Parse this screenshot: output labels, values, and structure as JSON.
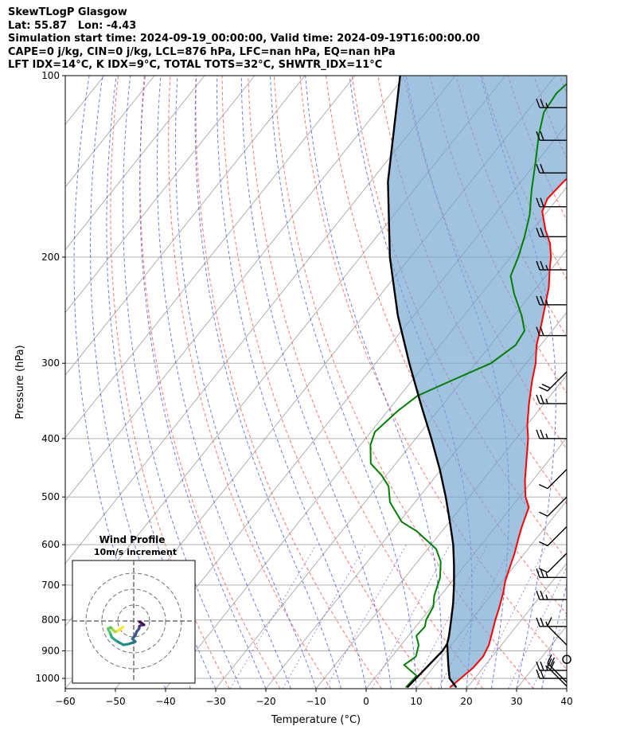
{
  "header": {
    "lines": [
      "SkewTLogP Glasgow",
      "Lat: 55.87   Lon: -4.43",
      "Simulation start time: 2024-09-19_00:00:00, Valid time: 2024-09-19T16:00:00.00",
      "CAPE=0 j/kg, CIN=0 j/kg, LCL=876 hPa, LFC=nan hPa, EQ=nan hPa",
      "LFT IDX=14°C, K IDX=9°C, TOTAL TOTS=32°C, SHWTR_IDX=11°C"
    ]
  },
  "chart_data": [
    {
      "type": "line",
      "subtype": "skew-t log-p",
      "xlabel": "Temperature (°C)",
      "ylabel": "Pressure (hPa)",
      "xlim": [
        -60,
        40
      ],
      "ylim": [
        1040,
        100
      ],
      "y_scale": "log",
      "grid": true,
      "x_ticks": [
        -60,
        -50,
        -40,
        -30,
        -20,
        -10,
        0,
        10,
        20,
        30,
        40
      ],
      "x_tick_labels": [
        "−60",
        "−50",
        "−40",
        "−30",
        "−20",
        "−10",
        "0",
        "10",
        "20",
        "30",
        "40"
      ],
      "y_ticks": [
        1000,
        900,
        800,
        700,
        600,
        500,
        400,
        300,
        200,
        100
      ],
      "y_tick_labels": [
        "1000",
        "900",
        "800",
        "700",
        "600",
        "500",
        "400",
        "300",
        "200",
        "100"
      ],
      "series": [
        {
          "role": "temperature",
          "color": "#ff0000",
          "points": [
            [
              1035,
              16.5
            ],
            [
              1000,
              17.2
            ],
            [
              960,
              18.0
            ],
            [
              920,
              18.2
            ],
            [
              880,
              17.5
            ],
            [
              840,
              16.2
            ],
            [
              800,
              14.8
            ],
            [
              760,
              13.5
            ],
            [
              720,
              12.0
            ],
            [
              690,
              10.6
            ],
            [
              660,
              9.5
            ],
            [
              620,
              8.0
            ],
            [
              590,
              6.6
            ],
            [
              560,
              5.2
            ],
            [
              520,
              3.5
            ],
            [
              500,
              1.2
            ],
            [
              470,
              -1.5
            ],
            [
              440,
              -4.0
            ],
            [
              400,
              -7.6
            ],
            [
              380,
              -9.9
            ],
            [
              350,
              -13.0
            ],
            [
              320,
              -16.1
            ],
            [
              300,
              -18.1
            ],
            [
              280,
              -20.8
            ],
            [
              260,
              -23.0
            ],
            [
              240,
              -25.5
            ],
            [
              225,
              -27.5
            ],
            [
              210,
              -30.2
            ],
            [
              200,
              -32.0
            ],
            [
              190,
              -34.3
            ],
            [
              180,
              -37.5
            ],
            [
              168,
              -41.0
            ],
            [
              160,
              -42.0
            ],
            [
              150,
              -41.5
            ],
            [
              140,
              -40.5
            ],
            [
              130,
              -39.5
            ],
            [
              120,
              -39.0
            ],
            [
              112,
              -38.0
            ],
            [
              106,
              -37.5
            ],
            [
              100,
              -37.0
            ]
          ]
        },
        {
          "role": "dewpoint",
          "color": "#008000",
          "points": [
            [
              1035,
              7.7
            ],
            [
              990,
              8.0
            ],
            [
              950,
              3.8
            ],
            [
              920,
              4.8
            ],
            [
              880,
              3.5
            ],
            [
              850,
              1.6
            ],
            [
              820,
              1.8
            ],
            [
              800,
              1.0
            ],
            [
              760,
              0.3
            ],
            [
              730,
              -1.2
            ],
            [
              680,
              -3.0
            ],
            [
              640,
              -5.4
            ],
            [
              610,
              -8.3
            ],
            [
              570,
              -15.0
            ],
            [
              550,
              -19.5
            ],
            [
              510,
              -25.0
            ],
            [
              480,
              -27.8
            ],
            [
              460,
              -31.0
            ],
            [
              440,
              -35.0
            ],
            [
              410,
              -38.0
            ],
            [
              390,
              -39.2
            ],
            [
              360,
              -38.0
            ],
            [
              340,
              -36.5
            ],
            [
              320,
              -32.0
            ],
            [
              300,
              -27.0
            ],
            [
              280,
              -25.0
            ],
            [
              265,
              -25.5
            ],
            [
              250,
              -28.5
            ],
            [
              230,
              -33.5
            ],
            [
              215,
              -37.0
            ],
            [
              200,
              -38.5
            ],
            [
              185,
              -40.5
            ],
            [
              170,
              -43.0
            ],
            [
              155,
              -46.5
            ],
            [
              140,
              -50.0
            ],
            [
              125,
              -54.0
            ],
            [
              115,
              -56.5
            ],
            [
              107,
              -57.0
            ],
            [
              100,
              -56.0
            ]
          ]
        },
        {
          "role": "parcel",
          "color": "#000000",
          "points": [
            [
              1035,
              17.8
            ],
            [
              1000,
              15.0
            ],
            [
              950,
              12.6
            ],
            [
              900,
              10.2
            ],
            [
              876,
              9.0
            ],
            [
              850,
              8.1
            ],
            [
              800,
              6.0
            ],
            [
              750,
              3.7
            ],
            [
              700,
              1.0
            ],
            [
              650,
              -2.1
            ],
            [
              600,
              -5.6
            ],
            [
              550,
              -9.9
            ],
            [
              500,
              -14.7
            ],
            [
              450,
              -20.3
            ],
            [
              400,
              -26.9
            ],
            [
              350,
              -34.6
            ],
            [
              300,
              -43.3
            ],
            [
              250,
              -53.2
            ],
            [
              200,
              -64.1
            ],
            [
              150,
              -76.5
            ],
            [
              100,
              -91.0
            ]
          ]
        },
        {
          "role": "lower-parcel",
          "color": "#000000",
          "points": [
            [
              1035,
              8.0
            ],
            [
              900,
              9.2
            ],
            [
              876,
              9.0
            ]
          ]
        }
      ],
      "wind_barbs": [
        [
          1030,
          20,
          "NW"
        ],
        [
          1015,
          20,
          "NW"
        ],
        [
          1000,
          20,
          "W"
        ],
        [
          970,
          15,
          "W"
        ],
        [
          930,
          0,
          "calm"
        ],
        [
          880,
          10,
          "NW"
        ],
        [
          820,
          15,
          "W"
        ],
        [
          740,
          15,
          "W"
        ],
        [
          680,
          15,
          "W"
        ],
        [
          620,
          10,
          "SW"
        ],
        [
          560,
          10,
          "SW"
        ],
        [
          500,
          10,
          "SW"
        ],
        [
          450,
          10,
          "SW"
        ],
        [
          400,
          15,
          "W"
        ],
        [
          350,
          15,
          "W"
        ],
        [
          310,
          20,
          "SW"
        ],
        [
          270,
          20,
          "W"
        ],
        [
          240,
          15,
          "W"
        ],
        [
          210,
          15,
          "W"
        ],
        [
          185,
          20,
          "W"
        ],
        [
          165,
          20,
          "W"
        ],
        [
          145,
          20,
          "W"
        ],
        [
          128,
          20,
          "W"
        ],
        [
          113,
          15,
          "W"
        ]
      ]
    },
    {
      "type": "scatter",
      "subtype": "hodograph",
      "title": "Wind Profile",
      "subtitle": "10m/s increment",
      "ring_increment": 10,
      "colormap": "viridis",
      "points": [
        [
          1.8,
          0.3
        ],
        [
          2.6,
          0.7
        ],
        [
          3.2,
          1.2
        ],
        [
          2.4,
          1.3
        ],
        [
          1.8,
          1.6
        ],
        [
          1.7,
          2.4
        ],
        [
          0.9,
          3.4
        ],
        [
          0.5,
          4.5
        ],
        [
          -0.4,
          5.6
        ],
        [
          0.5,
          6.5
        ],
        [
          -1.5,
          7.2
        ],
        [
          -3.2,
          7.5
        ],
        [
          -4.5,
          6.8
        ],
        [
          -5.8,
          6.0
        ],
        [
          -6.9,
          5.1
        ],
        [
          -7.5,
          3.6
        ],
        [
          -8.1,
          2.4
        ],
        [
          -7.2,
          2.0
        ],
        [
          -6.6,
          2.7
        ],
        [
          -5.9,
          3.4
        ],
        [
          -5.0,
          3.1
        ],
        [
          -4.3,
          2.6
        ],
        [
          -3.4,
          1.9
        ]
      ]
    }
  ]
}
